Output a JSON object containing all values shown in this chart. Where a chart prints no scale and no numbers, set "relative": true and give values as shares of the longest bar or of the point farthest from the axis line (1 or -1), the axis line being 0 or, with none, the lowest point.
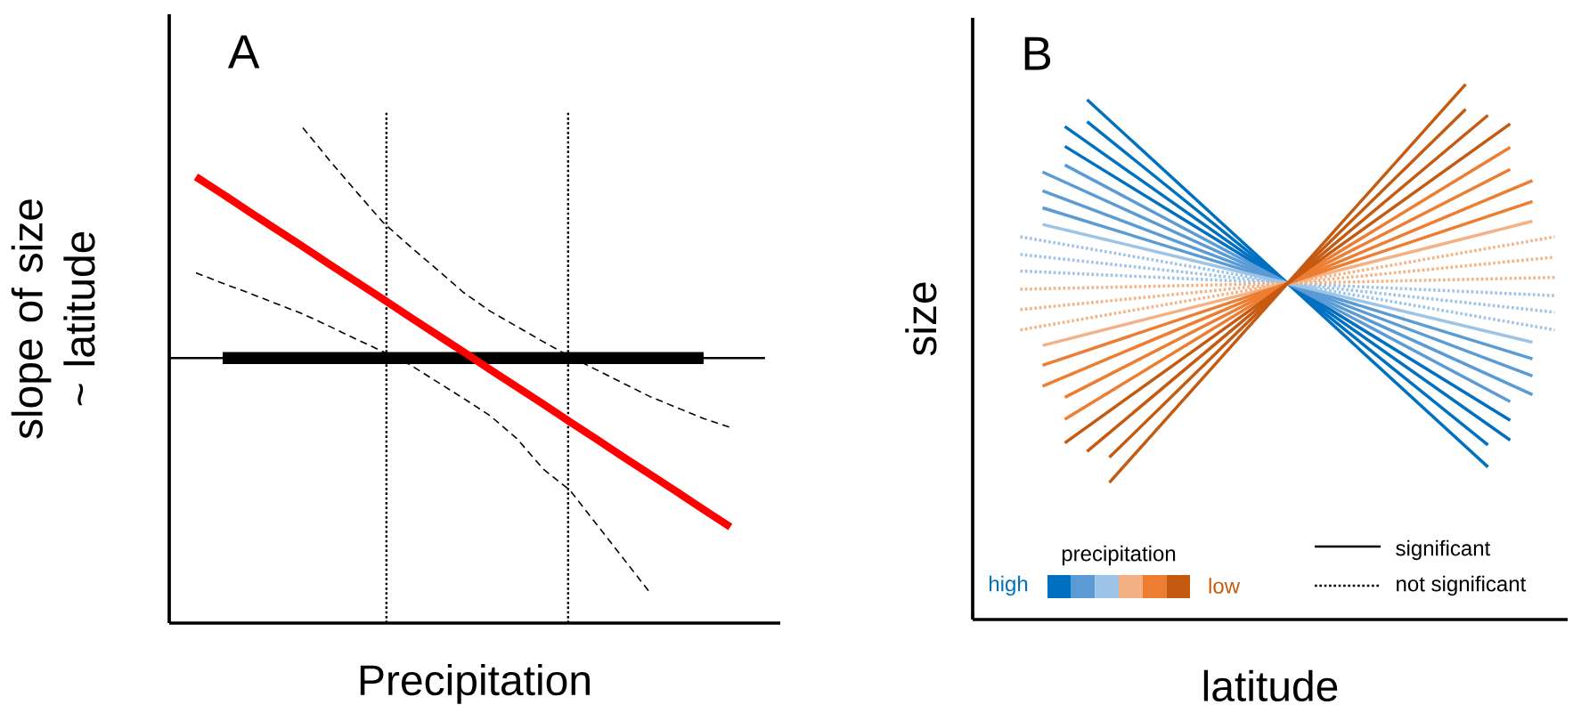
{
  "chart_data": [
    {
      "type": "line",
      "title": "A",
      "xlabel": "Precipitation",
      "ylabel": "slope of size ~ latitude",
      "relative": true,
      "categories": [
        null,
        null,
        null,
        null,
        null,
        null,
        null,
        null,
        null,
        null,
        null,
        null,
        null,
        null,
        null,
        null,
        null,
        null,
        null,
        null,
        null
      ],
      "ref_lines": [
        {
          "axis": "y",
          "value": 0.535,
          "color": "#000000",
          "line_style": "solid"
        }
      ],
      "series": [
        {
          "color": "#000000",
          "line_style": "solid",
          "values": [
            null,
            0.535,
            0.535,
            0.535,
            0.535,
            0.535,
            0.535,
            0.535,
            0.535,
            0.535,
            0.535,
            0.535,
            0.535,
            0.535,
            0.535,
            0.535,
            0.535,
            0.535,
            0.535,
            0.535,
            null
          ]
        },
        {
          "color": "#000000",
          "line_style": "dashed",
          "values": [
            null,
            null,
            null,
            null,
            1.0,
            0.934,
            0.871,
            0.809,
            0.761,
            0.715,
            0.668,
            0.63,
            0.599,
            0.568,
            0.538,
            0.511,
            0.484,
            0.457,
            0.435,
            0.413,
            0.395
          ]
        },
        {
          "color": "#000000",
          "line_style": "dashed",
          "values": [
            0.707,
            0.686,
            0.666,
            0.645,
            0.624,
            0.599,
            0.573,
            0.548,
            0.522,
            0.488,
            0.454,
            0.419,
            0.373,
            0.311,
            0.268,
            0.199,
            0.13,
            0.061,
            null,
            null,
            null
          ]
        },
        {
          "color": "#ff0000",
          "line_style": "solid",
          "values": [
            0.901,
            0.866,
            0.83,
            0.795,
            0.76,
            0.724,
            0.689,
            0.654,
            0.618,
            0.583,
            0.548,
            0.512,
            0.477,
            0.442,
            0.406,
            0.371,
            0.335,
            0.3,
            0.265,
            0.229,
            0.194
          ]
        }
      ]
    },
    {
      "type": "line",
      "title": "B",
      "xlabel": "latitude",
      "ylabel": "size",
      "relative": true,
      "categories": [
        null,
        null,
        null,
        null,
        null,
        null,
        null,
        null,
        null,
        null,
        null,
        null,
        null,
        null,
        null,
        null,
        null,
        null,
        null,
        null,
        null,
        null,
        null,
        null,
        null
      ],
      "annotations": [
        "precipitation",
        "high",
        "low",
        "significant",
        "not significant"
      ],
      "series": [
        {
          "color": "#0070c0",
          "line_style": "solid",
          "values": [
            null,
            null,
            null,
            0.971,
            null,
            null,
            null,
            null,
            null,
            null,
            null,
            null,
            0.628,
            null,
            null,
            null,
            null,
            null,
            null,
            null,
            null,
            0.285,
            null,
            null,
            null
          ]
        },
        {
          "color": "#0070c0",
          "line_style": "solid",
          "values": [
            null,
            null,
            null,
            0.93,
            null,
            null,
            null,
            null,
            null,
            null,
            null,
            null,
            0.628,
            null,
            null,
            null,
            null,
            null,
            null,
            null,
            null,
            0.326,
            null,
            null,
            null
          ]
        },
        {
          "color": "#0070c0",
          "line_style": "solid",
          "values": [
            null,
            null,
            0.921,
            null,
            null,
            null,
            null,
            null,
            null,
            null,
            null,
            null,
            0.628,
            null,
            null,
            null,
            null,
            null,
            null,
            null,
            null,
            null,
            0.335,
            null,
            null
          ]
        },
        {
          "color": "#0070c0",
          "line_style": "solid",
          "values": [
            null,
            null,
            0.884,
            null,
            null,
            null,
            null,
            null,
            null,
            null,
            null,
            null,
            0.628,
            null,
            null,
            null,
            null,
            null,
            null,
            null,
            null,
            null,
            0.372,
            null,
            null
          ]
        },
        {
          "color": "#5b9bd5",
          "line_style": "solid",
          "values": [
            null,
            null,
            0.849,
            null,
            null,
            null,
            null,
            null,
            null,
            null,
            null,
            null,
            0.628,
            null,
            null,
            null,
            null,
            null,
            null,
            null,
            null,
            null,
            0.407,
            null,
            null
          ]
        },
        {
          "color": "#5b9bd5",
          "line_style": "solid",
          "values": [
            null,
            0.836,
            null,
            null,
            null,
            null,
            null,
            null,
            null,
            null,
            null,
            null,
            0.628,
            null,
            null,
            null,
            null,
            null,
            null,
            null,
            null,
            null,
            null,
            0.42,
            null
          ]
        },
        {
          "color": "#5b9bd5",
          "line_style": "solid",
          "values": [
            null,
            0.801,
            null,
            null,
            null,
            null,
            null,
            null,
            null,
            null,
            null,
            null,
            0.628,
            null,
            null,
            null,
            null,
            null,
            null,
            null,
            null,
            null,
            null,
            0.455,
            null
          ]
        },
        {
          "color": "#5b9bd5",
          "line_style": "solid",
          "values": [
            null,
            0.769,
            null,
            null,
            null,
            null,
            null,
            null,
            null,
            null,
            null,
            null,
            0.628,
            null,
            null,
            null,
            null,
            null,
            null,
            null,
            null,
            null,
            null,
            0.487,
            null
          ]
        },
        {
          "color": "#9dc3e6",
          "line_style": "solid",
          "values": [
            null,
            0.738,
            null,
            null,
            null,
            null,
            null,
            null,
            null,
            null,
            null,
            null,
            0.628,
            null,
            null,
            null,
            null,
            null,
            null,
            null,
            null,
            null,
            null,
            0.518,
            null
          ]
        },
        {
          "color": "#9dc3e6",
          "line_style": "dotted",
          "values": [
            0.715,
            null,
            null,
            null,
            null,
            null,
            null,
            null,
            null,
            null,
            null,
            null,
            0.628,
            null,
            null,
            null,
            null,
            null,
            null,
            null,
            null,
            null,
            null,
            null,
            0.541
          ]
        },
        {
          "color": "#9dc3e6",
          "line_style": "dotted",
          "values": [
            0.682,
            null,
            null,
            null,
            null,
            null,
            null,
            null,
            null,
            null,
            null,
            null,
            0.628,
            null,
            null,
            null,
            null,
            null,
            null,
            null,
            null,
            null,
            null,
            null,
            0.574
          ]
        },
        {
          "color": "#9dc3e6",
          "line_style": "dotted",
          "values": [
            0.651,
            null,
            null,
            null,
            null,
            null,
            null,
            null,
            null,
            null,
            null,
            null,
            0.628,
            null,
            null,
            null,
            null,
            null,
            null,
            null,
            null,
            null,
            null,
            null,
            0.605
          ]
        },
        {
          "color": "#f4b183",
          "line_style": "dotted",
          "values": [
            0.617,
            null,
            null,
            null,
            null,
            null,
            null,
            null,
            null,
            null,
            null,
            null,
            0.628,
            null,
            null,
            null,
            null,
            null,
            null,
            null,
            null,
            null,
            null,
            null,
            0.639
          ]
        },
        {
          "color": "#f4b183",
          "line_style": "dotted",
          "values": [
            0.579,
            null,
            null,
            null,
            null,
            null,
            null,
            null,
            null,
            null,
            null,
            null,
            0.628,
            null,
            null,
            null,
            null,
            null,
            null,
            null,
            null,
            null,
            null,
            null,
            0.677
          ]
        },
        {
          "color": "#f4b183",
          "line_style": "dotted",
          "values": [
            0.541,
            null,
            null,
            null,
            null,
            null,
            null,
            null,
            null,
            null,
            null,
            null,
            0.628,
            null,
            null,
            null,
            null,
            null,
            null,
            null,
            null,
            null,
            null,
            null,
            0.715
          ]
        },
        {
          "color": "#f4b183",
          "line_style": "solid",
          "values": [
            null,
            0.512,
            null,
            null,
            null,
            null,
            null,
            null,
            null,
            null,
            null,
            null,
            0.628,
            null,
            null,
            null,
            null,
            null,
            null,
            null,
            null,
            null,
            null,
            0.744,
            null
          ]
        },
        {
          "color": "#ed7d31",
          "line_style": "solid",
          "values": [
            null,
            0.475,
            null,
            null,
            null,
            null,
            null,
            null,
            null,
            null,
            null,
            null,
            0.628,
            null,
            null,
            null,
            null,
            null,
            null,
            null,
            null,
            null,
            null,
            0.781,
            null
          ]
        },
        {
          "color": "#ed7d31",
          "line_style": "solid",
          "values": [
            null,
            0.436,
            null,
            null,
            null,
            null,
            null,
            null,
            null,
            null,
            null,
            null,
            0.628,
            null,
            null,
            null,
            null,
            null,
            null,
            null,
            null,
            null,
            null,
            0.82,
            null
          ]
        },
        {
          "color": "#ed7d31",
          "line_style": "solid",
          "values": [
            null,
            null,
            0.415,
            null,
            null,
            null,
            null,
            null,
            null,
            null,
            null,
            null,
            0.628,
            null,
            null,
            null,
            null,
            null,
            null,
            null,
            null,
            null,
            0.841,
            null,
            null
          ]
        },
        {
          "color": "#ed7d31",
          "line_style": "solid",
          "values": [
            null,
            null,
            0.374,
            null,
            null,
            null,
            null,
            null,
            null,
            null,
            null,
            null,
            0.628,
            null,
            null,
            null,
            null,
            null,
            null,
            null,
            null,
            null,
            0.882,
            null,
            null
          ]
        },
        {
          "color": "#c55a11",
          "line_style": "solid",
          "values": [
            null,
            null,
            0.33,
            null,
            null,
            null,
            null,
            null,
            null,
            null,
            null,
            null,
            0.628,
            null,
            null,
            null,
            null,
            null,
            null,
            null,
            null,
            null,
            0.926,
            null,
            null
          ]
        },
        {
          "color": "#c55a11",
          "line_style": "solid",
          "values": [
            null,
            null,
            null,
            0.314,
            null,
            null,
            null,
            null,
            null,
            null,
            null,
            null,
            0.628,
            null,
            null,
            null,
            null,
            null,
            null,
            null,
            null,
            0.942,
            null,
            null,
            null
          ]
        },
        {
          "color": "#c55a11",
          "line_style": "solid",
          "values": [
            null,
            null,
            null,
            null,
            0.303,
            null,
            null,
            null,
            null,
            null,
            null,
            null,
            0.628,
            null,
            null,
            null,
            null,
            null,
            null,
            null,
            0.953,
            null,
            null,
            null,
            null
          ]
        },
        {
          "color": "#c55a11",
          "line_style": "solid",
          "values": [
            null,
            null,
            null,
            null,
            0.256,
            null,
            null,
            null,
            null,
            null,
            null,
            null,
            0.628,
            null,
            null,
            null,
            null,
            null,
            null,
            null,
            1.0,
            null,
            null,
            null,
            null
          ]
        }
      ]
    }
  ]
}
